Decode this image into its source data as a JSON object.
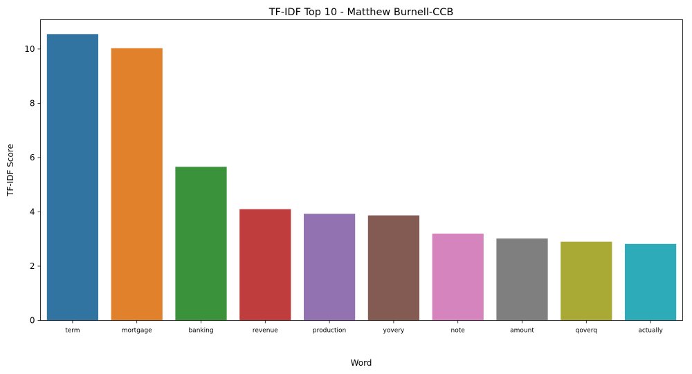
{
  "chart_data": {
    "type": "bar",
    "title": "TF-IDF Top 10 - Matthew Burnell-CCB",
    "xlabel": "Word",
    "ylabel": "TF-IDF Score",
    "categories": [
      "term",
      "mortgage",
      "banking",
      "revenue",
      "production",
      "yovery",
      "note",
      "amount",
      "qoverq",
      "actually"
    ],
    "values": [
      10.55,
      10.03,
      5.66,
      4.1,
      3.93,
      3.87,
      3.2,
      3.02,
      2.9,
      2.82
    ],
    "colors": [
      "#3274a1",
      "#e1812c",
      "#3a923a",
      "#c03d3e",
      "#9372b2",
      "#845b53",
      "#d684bd",
      "#7f7f7f",
      "#a9aa35",
      "#2eabb8"
    ],
    "ylim": [
      0,
      11.08
    ],
    "yticks": [
      "0",
      "2",
      "4",
      "6",
      "8",
      "10"
    ],
    "grid": false
  }
}
